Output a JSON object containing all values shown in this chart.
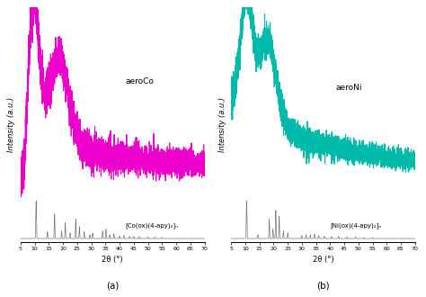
{
  "xlim": [
    5,
    70
  ],
  "xticks": [
    5,
    10,
    15,
    20,
    25,
    30,
    35,
    40,
    45,
    50,
    55,
    60,
    65,
    70
  ],
  "xlabel": "2θ (°)",
  "ylabel_a": "Intensity (a.u.)",
  "ylabel_b": "Intensity (a.u.)",
  "panel_a_label": "(a)",
  "panel_b_label": "(b)",
  "aero_co_label": "aeroCo",
  "aero_ni_label": "aeroNi",
  "co_crystal_label": "[Co(ox)(4-apy)₂]ₙ",
  "ni_crystal_label": "[Ni(ox)(4-apy)₂]ₙ",
  "aero_color_co": "#EE00CC",
  "aero_color_ni": "#00BBAA",
  "crystal_color": "#777777",
  "background_color": "#ffffff",
  "seed_co": 42,
  "seed_ni": 123
}
